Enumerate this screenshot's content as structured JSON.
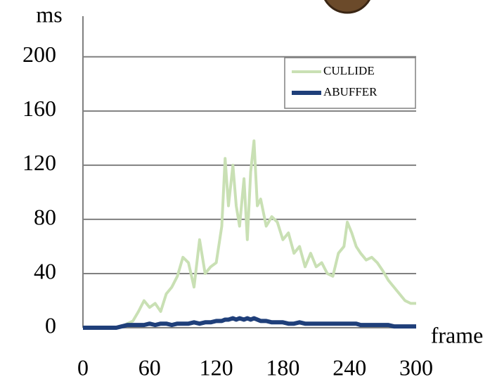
{
  "chart_data": {
    "type": "line",
    "y_label": "ms",
    "x_label": "frame",
    "x": [
      0,
      5,
      10,
      15,
      20,
      25,
      30,
      35,
      40,
      45,
      50,
      55,
      60,
      65,
      70,
      75,
      80,
      85,
      90,
      95,
      100,
      105,
      110,
      115,
      120,
      125,
      128,
      131,
      135,
      138,
      141,
      145,
      148,
      151,
      154,
      157,
      160,
      165,
      170,
      175,
      180,
      185,
      190,
      195,
      200,
      205,
      210,
      215,
      220,
      225,
      230,
      235,
      238,
      242,
      246,
      250,
      255,
      260,
      265,
      270,
      275,
      280,
      285,
      290,
      295,
      300
    ],
    "series": [
      {
        "name": "CULLIDE",
        "color": "#c9e0b4",
        "values": [
          0,
          0,
          0,
          0,
          0,
          0,
          0,
          1,
          3,
          5,
          12,
          20,
          15,
          18,
          12,
          25,
          30,
          38,
          52,
          48,
          30,
          65,
          40,
          45,
          48,
          75,
          125,
          90,
          120,
          90,
          75,
          110,
          65,
          115,
          138,
          90,
          95,
          75,
          82,
          78,
          65,
          70,
          55,
          60,
          45,
          55,
          45,
          48,
          40,
          38,
          55,
          60,
          78,
          70,
          60,
          55,
          50,
          52,
          48,
          42,
          35,
          30,
          25,
          20,
          18,
          18
        ]
      },
      {
        "name": "ABUFFER",
        "color": "#1f3f7a",
        "values": [
          0,
          0,
          0,
          0,
          0,
          0,
          0,
          1,
          2,
          2,
          2,
          2,
          3,
          2,
          3,
          3,
          2,
          3,
          3,
          3,
          4,
          3,
          4,
          4,
          5,
          5,
          6,
          6,
          7,
          6,
          7,
          6,
          7,
          6,
          7,
          6,
          5,
          5,
          4,
          4,
          4,
          3,
          3,
          4,
          3,
          3,
          3,
          3,
          3,
          3,
          3,
          3,
          3,
          3,
          3,
          2,
          2,
          2,
          2,
          2,
          2,
          1,
          1,
          1,
          1,
          1
        ]
      }
    ],
    "xlim": [
      0,
      300
    ],
    "xticks": [
      0,
      60,
      120,
      180,
      240,
      300
    ],
    "ylim": [
      0,
      230
    ],
    "yticks": [
      0,
      40,
      80,
      120,
      160,
      200
    ],
    "grid": true,
    "legend": "top-right"
  }
}
